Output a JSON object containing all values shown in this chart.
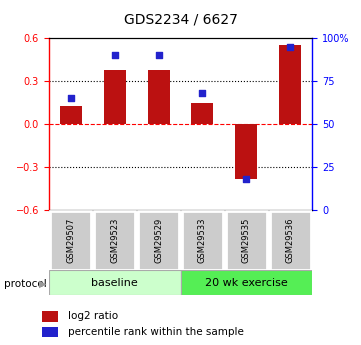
{
  "title": "GDS2234 / 6627",
  "samples": [
    "GSM29507",
    "GSM29523",
    "GSM29529",
    "GSM29533",
    "GSM29535",
    "GSM29536"
  ],
  "log2_ratio": [
    0.13,
    0.38,
    0.38,
    0.15,
    -0.38,
    0.55
  ],
  "percentile_rank": [
    65,
    90,
    90,
    68,
    18,
    95
  ],
  "ylim_left": [
    -0.6,
    0.6
  ],
  "ylim_right": [
    0,
    100
  ],
  "yticks_left": [
    -0.6,
    -0.3,
    0,
    0.3,
    0.6
  ],
  "yticks_right": [
    0,
    25,
    50,
    75,
    100
  ],
  "ytick_labels_right": [
    "0",
    "25",
    "50",
    "75",
    "100%"
  ],
  "bar_color": "#bb1111",
  "dot_color": "#2222cc",
  "bar_width": 0.5,
  "dot_size": 18,
  "protocol_labels": [
    "baseline",
    "20 wk exercise"
  ],
  "baseline_color": "#ccffcc",
  "exercise_color": "#55ee55",
  "sample_box_color": "#cccccc",
  "legend_items": [
    "log2 ratio",
    "percentile rank within the sample"
  ],
  "legend_colors": [
    "#bb1111",
    "#2222cc"
  ],
  "title_fontsize": 10
}
